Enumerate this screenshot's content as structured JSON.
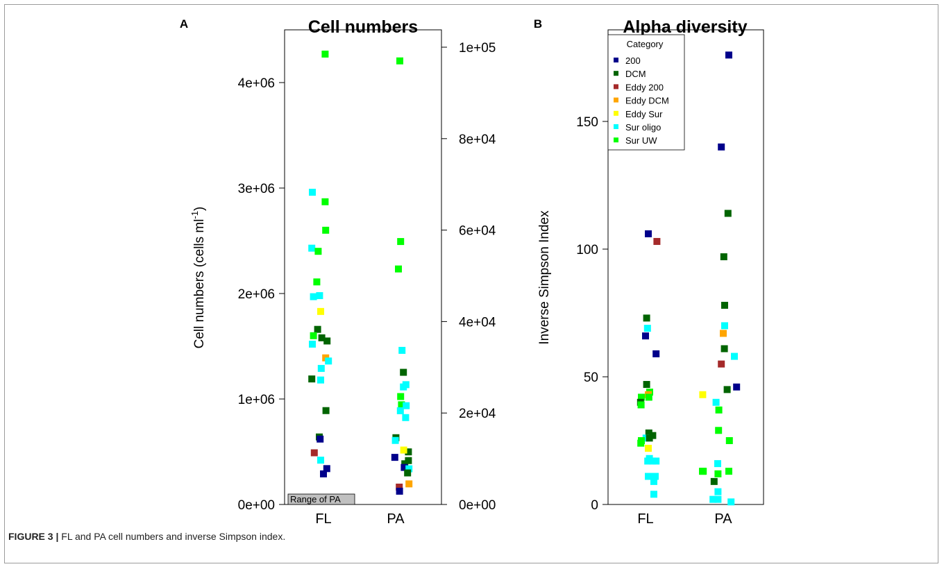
{
  "caption": {
    "label": "FIGURE 3 |",
    "text": " FL and PA cell numbers and inverse Simpson index."
  },
  "colors": {
    "200": "#00008b",
    "DCM": "#006400",
    "Eddy 200": "#a52a2a",
    "Eddy DCM": "#ffa500",
    "Eddy Sur": "#ffff00",
    "Sur oligo": "#00ffff",
    "Sur UW": "#00ff00"
  },
  "chart_data": [
    {
      "panel": "A",
      "type": "scatter",
      "title": "Cell numbers",
      "ylabel_main": "Cell numbers (cells ml",
      "ylabel_sup": "-1",
      "ylabel_tail": ")",
      "categories": [
        "FL",
        "PA"
      ],
      "ylim_left": [
        0,
        4300000
      ],
      "ylim_right": [
        0,
        100000
      ],
      "yticks_left": [
        "0e+00",
        "1e+06",
        "2e+06",
        "3e+06",
        "4e+06"
      ],
      "yticks_right": [
        "0e+00",
        "2e+04",
        "4e+04",
        "6e+04",
        "8e+04",
        "1e+05"
      ],
      "annotation": "Range of PA",
      "legend": "none",
      "points": [
        {
          "x": "FL",
          "jitter": 0.06,
          "y": 4270000,
          "category": "Sur UW"
        },
        {
          "x": "FL",
          "jitter": -0.4,
          "y": 2960000,
          "category": "Sur oligo"
        },
        {
          "x": "FL",
          "jitter": 0.06,
          "y": 2870000,
          "category": "Sur UW"
        },
        {
          "x": "FL",
          "jitter": 0.08,
          "y": 2600000,
          "category": "Sur UW"
        },
        {
          "x": "FL",
          "jitter": -0.42,
          "y": 2430000,
          "category": "Sur oligo"
        },
        {
          "x": "FL",
          "jitter": -0.19,
          "y": 2400000,
          "category": "Sur UW"
        },
        {
          "x": "FL",
          "jitter": -0.24,
          "y": 2110000,
          "category": "Sur UW"
        },
        {
          "x": "FL",
          "jitter": -0.36,
          "y": 1970000,
          "category": "Sur oligo"
        },
        {
          "x": "FL",
          "jitter": -0.14,
          "y": 1980000,
          "category": "Sur oligo"
        },
        {
          "x": "FL",
          "jitter": -0.1,
          "y": 1830000,
          "category": "Eddy Sur"
        },
        {
          "x": "FL",
          "jitter": -0.21,
          "y": 1660000,
          "category": "DCM"
        },
        {
          "x": "FL",
          "jitter": -0.36,
          "y": 1600000,
          "category": "Sur UW"
        },
        {
          "x": "FL",
          "jitter": -0.06,
          "y": 1580000,
          "category": "DCM"
        },
        {
          "x": "FL",
          "jitter": 0.13,
          "y": 1550000,
          "category": "DCM"
        },
        {
          "x": "FL",
          "jitter": -0.4,
          "y": 1520000,
          "category": "Sur oligo"
        },
        {
          "x": "FL",
          "jitter": 0.08,
          "y": 1390000,
          "category": "Eddy DCM"
        },
        {
          "x": "FL",
          "jitter": 0.18,
          "y": 1360000,
          "category": "Sur oligo"
        },
        {
          "x": "FL",
          "jitter": -0.08,
          "y": 1290000,
          "category": "Sur oligo"
        },
        {
          "x": "FL",
          "jitter": -0.42,
          "y": 1190000,
          "category": "DCM"
        },
        {
          "x": "FL",
          "jitter": -0.1,
          "y": 1180000,
          "category": "Sur oligo"
        },
        {
          "x": "FL",
          "jitter": 0.09,
          "y": 890000,
          "category": "DCM"
        },
        {
          "x": "FL",
          "jitter": -0.15,
          "y": 640000,
          "category": "DCM"
        },
        {
          "x": "FL",
          "jitter": -0.12,
          "y": 620000,
          "category": "200"
        },
        {
          "x": "FL",
          "jitter": -0.33,
          "y": 490000,
          "category": "Eddy 200"
        },
        {
          "x": "FL",
          "jitter": -0.1,
          "y": 420000,
          "category": "Sur oligo"
        },
        {
          "x": "FL",
          "jitter": 0.12,
          "y": 340000,
          "category": "200"
        },
        {
          "x": "FL",
          "jitter": 0.0,
          "y": 290000,
          "category": "200"
        },
        {
          "x": "PA",
          "jitter": 0.15,
          "y": 97000,
          "category": "Sur UW",
          "axis": "right"
        },
        {
          "x": "PA",
          "jitter": 0.18,
          "y": 57500,
          "category": "Sur UW",
          "axis": "right"
        },
        {
          "x": "PA",
          "jitter": 0.1,
          "y": 51500,
          "category": "Sur UW",
          "axis": "right"
        },
        {
          "x": "PA",
          "jitter": 0.23,
          "y": 33700,
          "category": "Sur oligo",
          "axis": "right"
        },
        {
          "x": "PA",
          "jitter": 0.28,
          "y": 28900,
          "category": "DCM",
          "axis": "right"
        },
        {
          "x": "PA",
          "jitter": 0.37,
          "y": 26200,
          "category": "Sur oligo",
          "axis": "right"
        },
        {
          "x": "PA",
          "jitter": 0.28,
          "y": 25700,
          "category": "Sur oligo",
          "axis": "right"
        },
        {
          "x": "PA",
          "jitter": 0.18,
          "y": 23600,
          "category": "Sur UW",
          "axis": "right"
        },
        {
          "x": "PA",
          "jitter": 0.21,
          "y": 21800,
          "category": "Sur UW",
          "axis": "right"
        },
        {
          "x": "PA",
          "jitter": 0.38,
          "y": 21600,
          "category": "Sur oligo",
          "axis": "right"
        },
        {
          "x": "PA",
          "jitter": 0.17,
          "y": 20500,
          "category": "Sur oligo",
          "axis": "right"
        },
        {
          "x": "PA",
          "jitter": 0.36,
          "y": 19000,
          "category": "Sur oligo",
          "axis": "right"
        },
        {
          "x": "PA",
          "jitter": 0.01,
          "y": 14600,
          "category": "DCM",
          "axis": "right"
        },
        {
          "x": "PA",
          "jitter": -0.01,
          "y": 14000,
          "category": "Sur oligo",
          "axis": "right"
        },
        {
          "x": "PA",
          "jitter": 0.46,
          "y": 11500,
          "category": "DCM",
          "axis": "right"
        },
        {
          "x": "PA",
          "jitter": 0.29,
          "y": 11900,
          "category": "Eddy Sur",
          "axis": "right"
        },
        {
          "x": "PA",
          "jitter": -0.03,
          "y": 10300,
          "category": "200",
          "axis": "right"
        },
        {
          "x": "PA",
          "jitter": 0.46,
          "y": 9600,
          "category": "DCM",
          "axis": "right"
        },
        {
          "x": "PA",
          "jitter": 0.33,
          "y": 8900,
          "category": "DCM",
          "axis": "right"
        },
        {
          "x": "PA",
          "jitter": 0.31,
          "y": 8100,
          "category": "200",
          "axis": "right"
        },
        {
          "x": "PA",
          "jitter": 0.48,
          "y": 7800,
          "category": "Sur oligo",
          "axis": "right"
        },
        {
          "x": "PA",
          "jitter": 0.43,
          "y": 6900,
          "category": "DCM",
          "axis": "right"
        },
        {
          "x": "PA",
          "jitter": 0.48,
          "y": 4500,
          "category": "Eddy DCM",
          "axis": "right"
        },
        {
          "x": "PA",
          "jitter": 0.13,
          "y": 3800,
          "category": "Eddy 200",
          "axis": "right"
        },
        {
          "x": "PA",
          "jitter": 0.14,
          "y": 2900,
          "category": "200",
          "axis": "right"
        }
      ]
    },
    {
      "panel": "B",
      "type": "scatter",
      "title": "Alpha diversity",
      "ylabel": "Inverse Simpson Index",
      "categories": [
        "FL",
        "PA"
      ],
      "ylim": [
        0,
        185
      ],
      "yticks": [
        "0",
        "50",
        "100",
        "150"
      ],
      "legend": "top-left",
      "legend_title": "Category",
      "legend_entries": [
        "200",
        "DCM",
        "Eddy 200",
        "Eddy DCM",
        "Eddy Sur",
        "Sur oligo",
        "Sur UW"
      ],
      "points": [
        {
          "x": "FL",
          "jitter": 0.1,
          "y": 106,
          "category": "200"
        },
        {
          "x": "FL",
          "jitter": 0.41,
          "y": 103,
          "category": "Eddy 200"
        },
        {
          "x": "FL",
          "jitter": 0.04,
          "y": 73,
          "category": "DCM"
        },
        {
          "x": "FL",
          "jitter": 0.07,
          "y": 69,
          "category": "Sur oligo"
        },
        {
          "x": "FL",
          "jitter": 0.0,
          "y": 66,
          "category": "200"
        },
        {
          "x": "FL",
          "jitter": 0.38,
          "y": 59,
          "category": "200"
        },
        {
          "x": "FL",
          "jitter": 0.04,
          "y": 47,
          "category": "DCM"
        },
        {
          "x": "FL",
          "jitter": 0.15,
          "y": 44,
          "category": "Sur UW"
        },
        {
          "x": "FL",
          "jitter": 0.1,
          "y": 43,
          "category": "Eddy DCM"
        },
        {
          "x": "FL",
          "jitter": -0.15,
          "y": 42,
          "category": "Sur UW"
        },
        {
          "x": "FL",
          "jitter": 0.12,
          "y": 42,
          "category": "Sur UW"
        },
        {
          "x": "FL",
          "jitter": -0.18,
          "y": 40,
          "category": "DCM"
        },
        {
          "x": "FL",
          "jitter": -0.16,
          "y": 39,
          "category": "Sur UW"
        },
        {
          "x": "FL",
          "jitter": 0.12,
          "y": 28,
          "category": "DCM"
        },
        {
          "x": "FL",
          "jitter": 0.02,
          "y": 26,
          "category": "Sur oligo"
        },
        {
          "x": "FL",
          "jitter": 0.26,
          "y": 27,
          "category": "DCM"
        },
        {
          "x": "FL",
          "jitter": 0.14,
          "y": 26,
          "category": "DCM"
        },
        {
          "x": "FL",
          "jitter": -0.15,
          "y": 25,
          "category": "Sur UW"
        },
        {
          "x": "FL",
          "jitter": -0.17,
          "y": 24,
          "category": "Sur UW"
        },
        {
          "x": "FL",
          "jitter": 0.1,
          "y": 22,
          "category": "Eddy Sur"
        },
        {
          "x": "FL",
          "jitter": 0.14,
          "y": 18,
          "category": "Sur oligo"
        },
        {
          "x": "FL",
          "jitter": 0.08,
          "y": 17,
          "category": "Sur oligo"
        },
        {
          "x": "FL",
          "jitter": 0.25,
          "y": 17,
          "category": "Sur oligo"
        },
        {
          "x": "FL",
          "jitter": 0.38,
          "y": 17,
          "category": "Sur oligo"
        },
        {
          "x": "FL",
          "jitter": 0.1,
          "y": 11,
          "category": "Sur oligo"
        },
        {
          "x": "FL",
          "jitter": 0.35,
          "y": 11,
          "category": "Sur oligo"
        },
        {
          "x": "FL",
          "jitter": 0.3,
          "y": 9,
          "category": "Sur oligo"
        },
        {
          "x": "FL",
          "jitter": 0.3,
          "y": 4,
          "category": "Sur oligo"
        },
        {
          "x": "PA",
          "jitter": 0.2,
          "y": 176,
          "category": "200"
        },
        {
          "x": "PA",
          "jitter": -0.07,
          "y": 140,
          "category": "200"
        },
        {
          "x": "PA",
          "jitter": 0.17,
          "y": 114,
          "category": "DCM"
        },
        {
          "x": "PA",
          "jitter": 0.02,
          "y": 97,
          "category": "DCM"
        },
        {
          "x": "PA",
          "jitter": 0.05,
          "y": 78,
          "category": "DCM"
        },
        {
          "x": "PA",
          "jitter": 0.05,
          "y": 70,
          "category": "Sur oligo"
        },
        {
          "x": "PA",
          "jitter": 0.0,
          "y": 67,
          "category": "Eddy DCM"
        },
        {
          "x": "PA",
          "jitter": 0.04,
          "y": 61,
          "category": "DCM"
        },
        {
          "x": "PA",
          "jitter": 0.4,
          "y": 58,
          "category": "Sur oligo"
        },
        {
          "x": "PA",
          "jitter": -0.07,
          "y": 55,
          "category": "Eddy 200"
        },
        {
          "x": "PA",
          "jitter": 0.48,
          "y": 46,
          "category": "200"
        },
        {
          "x": "PA",
          "jitter": 0.14,
          "y": 45,
          "category": "DCM"
        },
        {
          "x": "PA",
          "jitter": -0.74,
          "y": 43,
          "category": "Eddy Sur"
        },
        {
          "x": "PA",
          "jitter": -0.26,
          "y": 40,
          "category": "Sur oligo"
        },
        {
          "x": "PA",
          "jitter": -0.16,
          "y": 37,
          "category": "Sur UW"
        },
        {
          "x": "PA",
          "jitter": -0.17,
          "y": 29,
          "category": "Sur UW"
        },
        {
          "x": "PA",
          "jitter": 0.22,
          "y": 25,
          "category": "Sur UW"
        },
        {
          "x": "PA",
          "jitter": -0.2,
          "y": 16,
          "category": "Sur oligo"
        },
        {
          "x": "PA",
          "jitter": -0.72,
          "y": 13,
          "category": "Sur UW"
        },
        {
          "x": "PA",
          "jitter": -0.75,
          "y": 13,
          "category": "Sur UW"
        },
        {
          "x": "PA",
          "jitter": 0.2,
          "y": 13,
          "category": "Sur UW"
        },
        {
          "x": "PA",
          "jitter": -0.19,
          "y": 12,
          "category": "Sur UW"
        },
        {
          "x": "PA",
          "jitter": -0.33,
          "y": 9,
          "category": "DCM"
        },
        {
          "x": "PA",
          "jitter": -0.19,
          "y": 5,
          "category": "Sur oligo"
        },
        {
          "x": "PA",
          "jitter": -0.37,
          "y": 2,
          "category": "Sur oligo"
        },
        {
          "x": "PA",
          "jitter": -0.19,
          "y": 2,
          "category": "Sur oligo"
        },
        {
          "x": "PA",
          "jitter": 0.28,
          "y": 1,
          "category": "Sur oligo"
        }
      ]
    }
  ]
}
